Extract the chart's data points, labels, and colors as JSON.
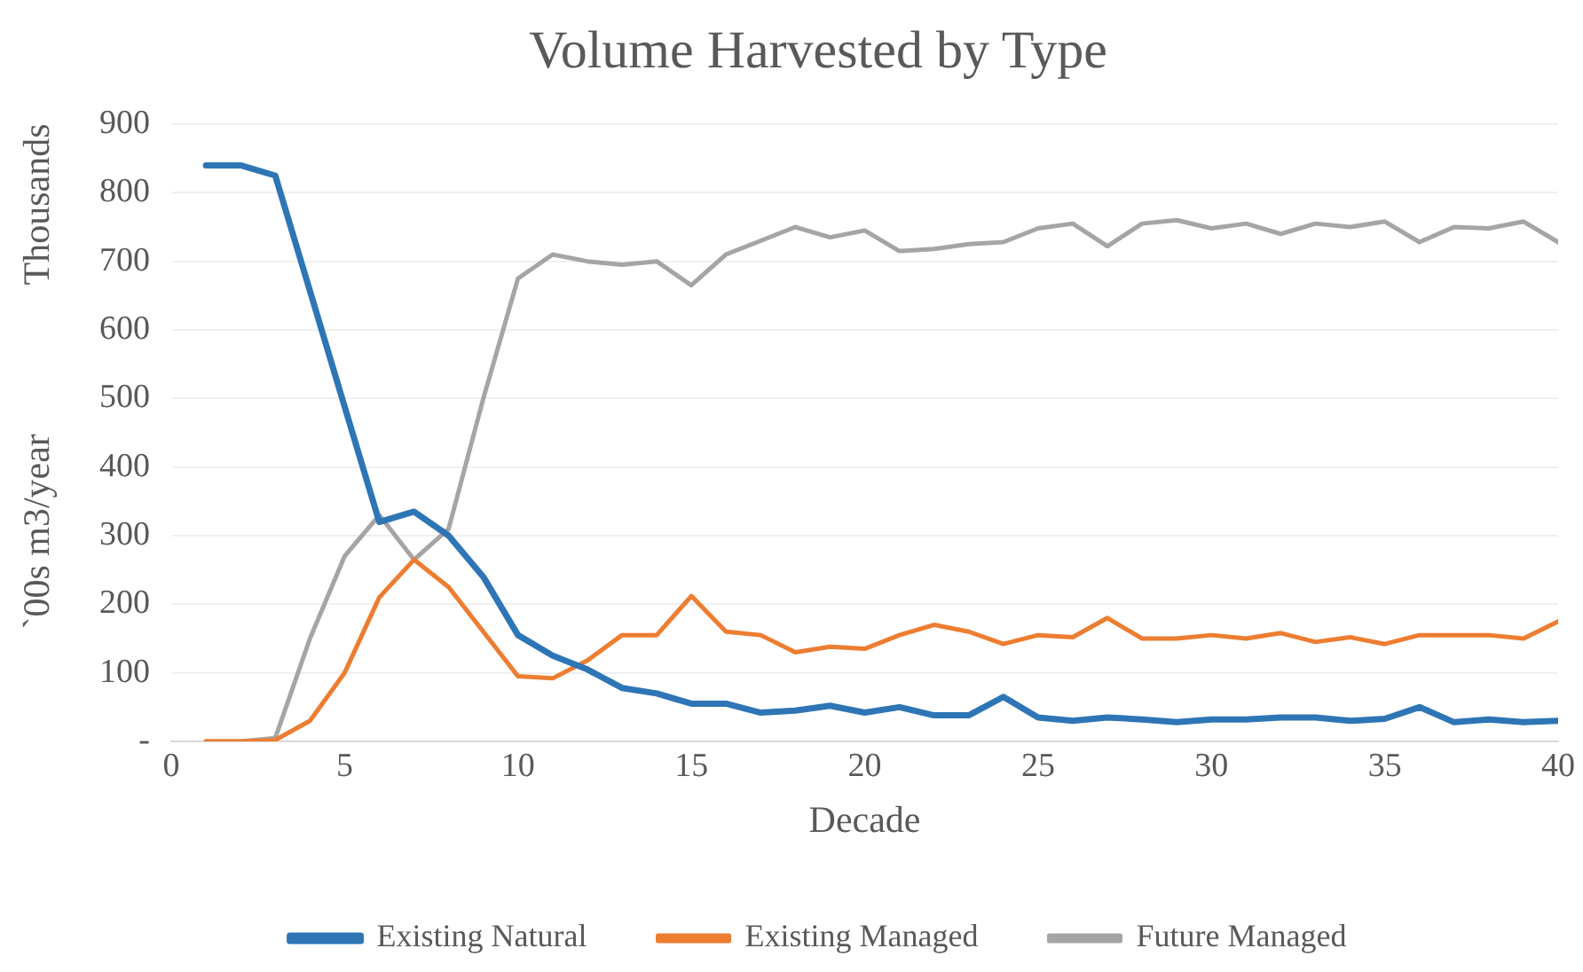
{
  "chart_data": {
    "type": "line",
    "title": "Volume Harvested by Type",
    "xlabel": "Decade",
    "ylabel": "`00s m3/year",
    "annotations": [
      "Thousands"
    ],
    "x": [
      1,
      2,
      3,
      4,
      5,
      6,
      7,
      8,
      9,
      10,
      11,
      12,
      13,
      14,
      15,
      16,
      17,
      18,
      19,
      20,
      21,
      22,
      23,
      24,
      25,
      26,
      27,
      28,
      29,
      30,
      31,
      32,
      33,
      34,
      35,
      36,
      37,
      38,
      39,
      40
    ],
    "xlim": [
      0,
      40
    ],
    "xticks": [
      0,
      5,
      10,
      15,
      20,
      25,
      30,
      35,
      40
    ],
    "ylim": [
      0,
      900
    ],
    "yticks": [
      {
        "value": 0,
        "label": "-"
      },
      100,
      200,
      300,
      400,
      500,
      600,
      700,
      800,
      900
    ],
    "grid": "y",
    "legend": "bottom",
    "marker": "none",
    "line_style": "solid",
    "series": [
      {
        "name": "Existing Natural",
        "color": "#2e75b6",
        "values": [
          840,
          840,
          825,
          657,
          488,
          320,
          335,
          300,
          240,
          155,
          125,
          105,
          78,
          70,
          55,
          55,
          42,
          45,
          52,
          42,
          50,
          38,
          38,
          65,
          35,
          30,
          35,
          32,
          28,
          32,
          32,
          35,
          35,
          30,
          33,
          50,
          28,
          32,
          28,
          30
        ]
      },
      {
        "name": "Existing Managed",
        "color": "#ed7d31",
        "values": [
          0,
          0,
          2,
          30,
          100,
          210,
          265,
          225,
          160,
          95,
          92,
          118,
          155,
          155,
          212,
          160,
          155,
          130,
          138,
          135,
          155,
          170,
          160,
          142,
          155,
          152,
          180,
          150,
          150,
          155,
          150,
          158,
          145,
          152,
          142,
          155,
          155,
          155,
          150,
          175
        ]
      },
      {
        "name": "Future Managed",
        "color": "#a5a5a5",
        "values": [
          0,
          0,
          5,
          150,
          270,
          330,
          265,
          310,
          500,
          675,
          710,
          700,
          695,
          700,
          665,
          710,
          730,
          750,
          735,
          745,
          715,
          718,
          725,
          728,
          748,
          755,
          722,
          755,
          760,
          748,
          755,
          740,
          755,
          750,
          758,
          728,
          750,
          748,
          758,
          728
        ]
      }
    ]
  }
}
